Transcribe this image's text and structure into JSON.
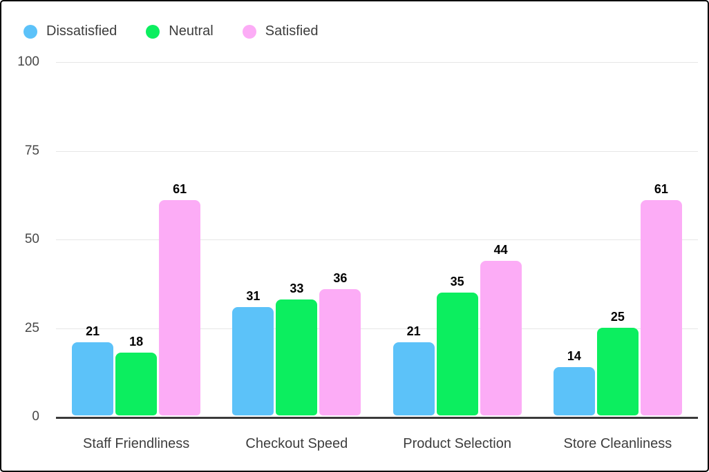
{
  "chart_data": {
    "type": "bar",
    "title": "",
    "xlabel": "",
    "ylabel": "",
    "categories": [
      "Staff Friendliness",
      "Checkout Speed",
      "Product Selection",
      "Store Cleanliness"
    ],
    "series": [
      {
        "name": "Dissatisfied",
        "color": "#5cc2f9",
        "values": [
          21,
          31,
          21,
          14
        ]
      },
      {
        "name": "Neutral",
        "color": "#0cee5f",
        "values": [
          18,
          33,
          35,
          25
        ]
      },
      {
        "name": "Satisfied",
        "color": "#fcacf6",
        "values": [
          61,
          36,
          44,
          61
        ]
      }
    ],
    "ylim": [
      0,
      100
    ],
    "yticks": [
      0,
      25,
      50,
      75,
      100
    ],
    "grid": true,
    "legend_position": "top-left",
    "value_labels": true
  },
  "style": {
    "background": "#ffffff",
    "frame_border_color": "#000000",
    "grid_color": "#e6e6e6",
    "axis_line_color": "#3a3a3a",
    "ytick_label_color": "#474747",
    "category_label_color": "#3d3d3d",
    "value_label_color": "#000000",
    "legend_label_color": "#3c3c3c"
  }
}
